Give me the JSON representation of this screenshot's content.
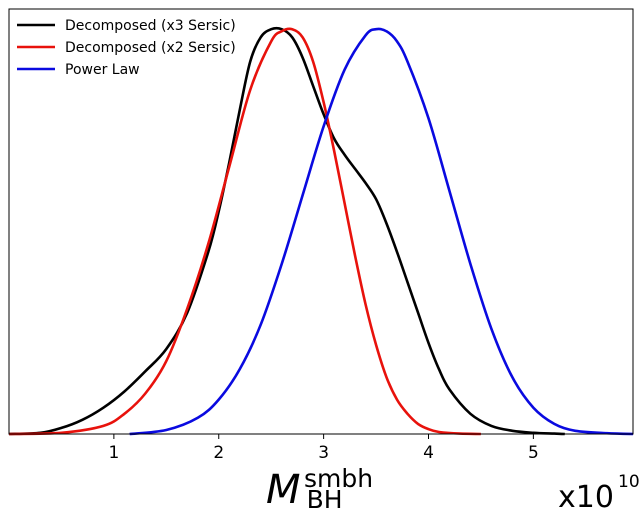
{
  "chart_data": {
    "type": "line",
    "xlabel": {
      "main": "M",
      "sub": "BH",
      "sup": "smbh"
    },
    "offset_text": {
      "base": "x10",
      "exp": "10"
    },
    "xlim": [
      0.0,
      5.95
    ],
    "ylim": [
      0.0,
      1.05
    ],
    "xticks": [
      1,
      2,
      3,
      4,
      5
    ],
    "xtick_labels": [
      "1",
      "2",
      "3",
      "4",
      "5"
    ],
    "legend": {
      "placement": "top-left"
    },
    "series": [
      {
        "name": "Decomposed (x3 Sersic)",
        "color": "#000000",
        "x": [
          0.0,
          0.3,
          0.5,
          0.7,
          0.9,
          1.1,
          1.3,
          1.5,
          1.7,
          1.9,
          2.0,
          2.1,
          2.2,
          2.3,
          2.4,
          2.5,
          2.6,
          2.7,
          2.8,
          2.9,
          3.0,
          3.1,
          3.2,
          3.3,
          3.4,
          3.5,
          3.6,
          3.7,
          3.8,
          3.9,
          4.0,
          4.1,
          4.2,
          4.4,
          4.6,
          4.8,
          5.0,
          5.2,
          5.3
        ],
        "y": [
          0.0,
          0.003,
          0.015,
          0.035,
          0.065,
          0.105,
          0.155,
          0.21,
          0.3,
          0.45,
          0.55,
          0.67,
          0.8,
          0.92,
          0.98,
          1.0,
          1.0,
          0.98,
          0.93,
          0.86,
          0.79,
          0.73,
          0.69,
          0.655,
          0.62,
          0.58,
          0.52,
          0.45,
          0.375,
          0.3,
          0.225,
          0.16,
          0.11,
          0.05,
          0.02,
          0.008,
          0.003,
          0.001,
          0.0
        ]
      },
      {
        "name": "Decomposed (x2 Sersic)",
        "color": "#e8120c",
        "x": [
          0.0,
          0.5,
          0.9,
          1.1,
          1.3,
          1.5,
          1.7,
          1.9,
          2.1,
          2.3,
          2.5,
          2.6,
          2.7,
          2.8,
          2.9,
          3.0,
          3.1,
          3.2,
          3.3,
          3.4,
          3.5,
          3.6,
          3.7,
          3.8,
          3.9,
          4.0,
          4.1,
          4.3,
          4.5
        ],
        "y": [
          0.0,
          0.003,
          0.02,
          0.05,
          0.1,
          0.18,
          0.31,
          0.47,
          0.66,
          0.85,
          0.97,
          0.995,
          1.0,
          0.98,
          0.92,
          0.82,
          0.7,
          0.57,
          0.44,
          0.32,
          0.22,
          0.14,
          0.085,
          0.05,
          0.025,
          0.012,
          0.005,
          0.001,
          0.0
        ]
      },
      {
        "name": "Power Law",
        "color": "#0a0ae0",
        "x": [
          1.15,
          1.5,
          1.8,
          2.0,
          2.2,
          2.4,
          2.6,
          2.8,
          3.0,
          3.2,
          3.4,
          3.5,
          3.6,
          3.7,
          3.8,
          4.0,
          4.2,
          4.4,
          4.6,
          4.8,
          5.0,
          5.2,
          5.4,
          5.7,
          5.95
        ],
        "y": [
          0.0,
          0.01,
          0.04,
          0.085,
          0.16,
          0.27,
          0.42,
          0.59,
          0.76,
          0.9,
          0.985,
          1.0,
          0.995,
          0.97,
          0.92,
          0.78,
          0.6,
          0.42,
          0.26,
          0.14,
          0.065,
          0.025,
          0.008,
          0.002,
          0.0
        ]
      }
    ]
  }
}
